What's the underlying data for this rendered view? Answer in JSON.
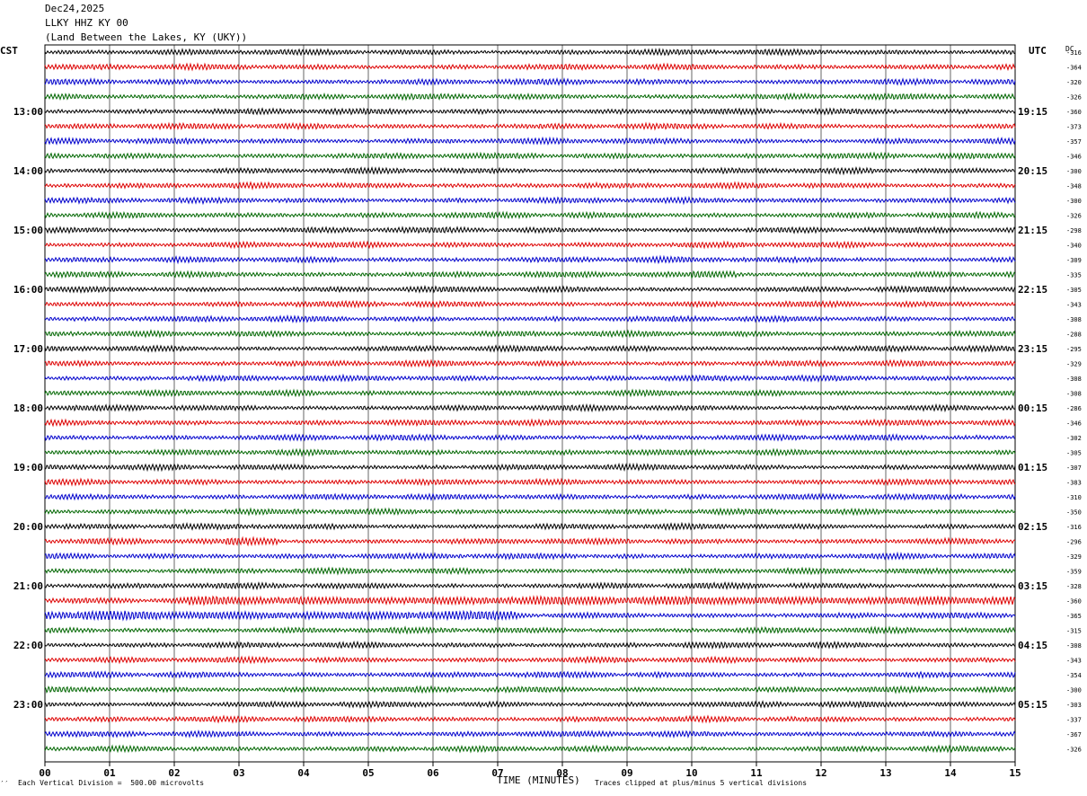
{
  "header": {
    "date": "Dec24,2025",
    "station": "LLKY HHZ KY 00",
    "location": "(Land Between the Lakes, KY (UKY))"
  },
  "left_tz": "CST",
  "right_tz": "UTC",
  "dc_label": "DC",
  "footer": {
    "scale": "Each Vertical Division =  500.00 microvolts",
    "xlabel": "TIME (MINUTES)",
    "clip_note": "Traces clipped at plus/minus 5 vertical divisions",
    "corner_mark": "′′"
  },
  "colors": {
    "cycle": [
      "#000000",
      "#dd0000",
      "#0000cc",
      "#006600"
    ],
    "grid": "#000000"
  },
  "chart_data": {
    "type": "line",
    "title": "LLKY HHZ KY 00",
    "xlabel": "TIME (MINUTES)",
    "ylabel": "",
    "xlim": [
      0,
      15
    ],
    "x_ticks": [
      "00",
      "01",
      "02",
      "03",
      "04",
      "05",
      "06",
      "07",
      "08",
      "09",
      "10",
      "11",
      "12",
      "13",
      "14",
      "15"
    ],
    "rows_per_hour": 4,
    "row_count": 48,
    "cst_hour_labels": [
      "13:00",
      "14:00",
      "15:00",
      "16:00",
      "17:00",
      "18:00",
      "19:00",
      "20:00",
      "21:00",
      "22:00",
      "23:00"
    ],
    "utc_hour_labels": [
      "19:15",
      "20:15",
      "21:15",
      "22:15",
      "23:15",
      "00:15",
      "01:15",
      "02:15",
      "03:15",
      "04:15",
      "05:15"
    ],
    "dc_offsets": [
      "-316",
      "-364",
      "-320",
      "-326",
      "-360",
      "-373",
      "-357",
      "-346",
      "-300",
      "-348",
      "-300",
      "-326",
      "-298",
      "-340",
      "-309",
      "-335",
      "-305",
      "-343",
      "-308",
      "-288",
      "-295",
      "-329",
      "-308",
      "-308",
      "-286",
      "-346",
      "-302",
      "-305",
      "-307",
      "-383",
      "-310",
      "-350",
      "-316",
      "-296",
      "-329",
      "-359",
      "-328",
      "-360",
      "-365",
      "-315",
      "-308",
      "-343",
      "-354",
      "-300",
      "-303",
      "-337",
      "-367",
      "-326"
    ],
    "event_rows": [
      {
        "row": 15,
        "x_range": [
          10.0,
          10.7
        ],
        "amp": 1.6
      },
      {
        "row": 37,
        "x_range": [
          2.2,
          15
        ],
        "amp": 2.0
      },
      {
        "row": 38,
        "x_range": [
          0,
          7.3
        ],
        "amp": 2.2
      },
      {
        "row": 33,
        "x_range": [
          2.8,
          3.6
        ],
        "amp": 1.8
      }
    ]
  }
}
